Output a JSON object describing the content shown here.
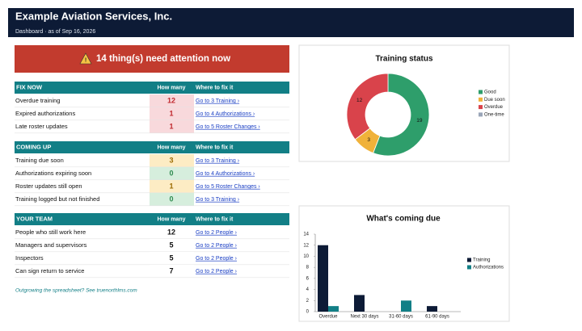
{
  "header": {
    "title": "Example Aviation Services, Inc.",
    "subtitle": "Dashboard  ·  as of Sep 16, 2026"
  },
  "alert": {
    "text": "14 thing(s) need attention now"
  },
  "sections": [
    {
      "title": "FIX NOW",
      "columns": [
        "How many",
        "Where to fix it"
      ],
      "rows": [
        {
          "label": "Overdue training",
          "count": 12,
          "link": "Go to 3 Training  ›",
          "color": "#c0282e",
          "background": "#f8d9dc"
        },
        {
          "label": "Expired authorizations",
          "count": 1,
          "link": "Go to 4 Authorizations  ›",
          "color": "#c0282e",
          "background": "#f8d9dc"
        },
        {
          "label": "Late roster updates",
          "count": 1,
          "link": "Go to 5 Roster Changes  ›",
          "color": "#c0282e",
          "background": "#f8d9dc"
        }
      ]
    },
    {
      "title": "COMING UP",
      "columns": [
        "How many",
        "Where to fix it"
      ],
      "rows": [
        {
          "label": "Training due soon",
          "count": 3,
          "link": "Go to 3 Training  ›",
          "color": "#9a6a00",
          "background": "#fdecc4"
        },
        {
          "label": "Authorizations expiring soon",
          "count": 0,
          "link": "Go to 4 Authorizations  ›",
          "color": "#2e8b4f",
          "background": "#d6eedd"
        },
        {
          "label": "Roster updates still open",
          "count": 1,
          "link": "Go to 5 Roster Changes  ›",
          "color": "#9a6a00",
          "background": "#fdecc4"
        },
        {
          "label": "Training logged but not finished",
          "count": 0,
          "link": "Go to 3 Training  ›",
          "color": "#2e8b4f",
          "background": "#d6eedd"
        }
      ]
    },
    {
      "title": "YOUR TEAM",
      "columns": [
        "How many",
        "Where to fix it"
      ],
      "rows": [
        {
          "label": "People who still work here",
          "count": 12,
          "link": "Go to 2 People  ›",
          "color": "#111111",
          "background": "#ffffff"
        },
        {
          "label": "Managers and supervisors",
          "count": 5,
          "link": "Go to 2 People  ›",
          "color": "#111111",
          "background": "#ffffff"
        },
        {
          "label": "Inspectors",
          "count": 5,
          "link": "Go to 2 People  ›",
          "color": "#111111",
          "background": "#ffffff"
        },
        {
          "label": "Can sign return to service",
          "count": 7,
          "link": "Go to 2 People  ›",
          "color": "#111111",
          "background": "#ffffff"
        }
      ]
    }
  ],
  "footer": "Outgrowing the spreadsheet? See truenorthlms.com",
  "chart_data": [
    {
      "type": "pie",
      "title": "Training status",
      "donut": true,
      "categories": [
        "Good",
        "Due soon",
        "Overdue",
        "One-time"
      ],
      "values": [
        19,
        3,
        12,
        0
      ],
      "colors": [
        "#2e9e6b",
        "#f0b23a",
        "#d9434b",
        "#9aa5b8"
      ],
      "legend": "right"
    },
    {
      "type": "bar",
      "title": "What's coming due",
      "categories": [
        "Overdue",
        "Next 30 days",
        "31-60 days",
        "61-90 days"
      ],
      "series": [
        {
          "name": "Training",
          "color": "#0d1b36",
          "values": [
            12,
            3,
            0,
            1
          ]
        },
        {
          "name": "Authorizations",
          "color": "#127f86",
          "values": [
            1,
            0,
            2,
            0
          ]
        }
      ],
      "ylim": [
        0,
        14
      ],
      "yticks": [
        0,
        2,
        4,
        6,
        8,
        10,
        12,
        14
      ],
      "grid": false,
      "legend": "right"
    }
  ]
}
